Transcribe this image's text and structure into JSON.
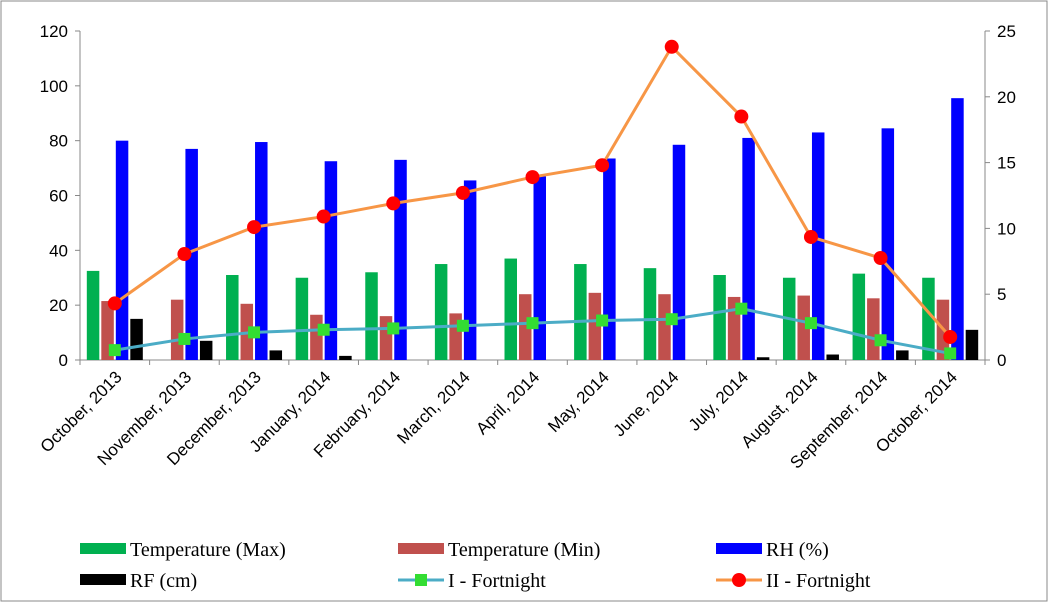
{
  "chart_data": {
    "type": "bar-line",
    "categories": [
      "October, 2013",
      "November, 2013",
      "December, 2013",
      "January, 2014",
      "February, 2014",
      "March, 2014",
      "April, 2014",
      "May, 2014",
      "June, 2014",
      "July, 2014",
      "August, 2014",
      "September, 2014",
      "October, 2014"
    ],
    "series": [
      {
        "name": "Temperature (Max)",
        "kind": "bar",
        "color": "#00b050",
        "values": [
          32.5,
          null,
          31,
          30,
          32,
          35,
          37,
          35,
          33.5,
          31,
          30,
          31.5,
          30
        ]
      },
      {
        "name": "Temperature (Min)",
        "kind": "bar",
        "color": "#c0504d",
        "values": [
          21.5,
          22,
          20.5,
          16.5,
          16,
          17,
          24,
          24.5,
          24,
          23,
          23.5,
          22.5,
          22
        ]
      },
      {
        "name": "RH (%)",
        "kind": "bar",
        "color": "#0000ff",
        "values": [
          80,
          77,
          79.5,
          72.5,
          73,
          65.5,
          67,
          73.5,
          78.5,
          81,
          83,
          84.5,
          95.5
        ]
      },
      {
        "name": "RF (cm)",
        "kind": "bar",
        "color": "#000000",
        "values": [
          15,
          7,
          3.5,
          1.5,
          0,
          0,
          0,
          0,
          0,
          1,
          2,
          3.5,
          11
        ]
      },
      {
        "name": "I - Fortnight",
        "kind": "line",
        "axis": "y2",
        "color": "#4bacc6",
        "marker": "square",
        "marker_color": "#33dd33",
        "values": [
          0.75,
          1.6,
          2.1,
          2.3,
          2.4,
          2.6,
          2.8,
          3.0,
          3.1,
          3.9,
          2.8,
          1.5,
          0.5
        ]
      },
      {
        "name": "II - Fortnight",
        "kind": "line",
        "axis": "y2",
        "color": "#f79646",
        "marker": "circle",
        "marker_color": "#ff0000",
        "values": [
          4.3,
          8.05,
          10.1,
          10.9,
          11.9,
          12.7,
          13.9,
          14.8,
          23.8,
          18.5,
          9.35,
          7.75,
          1.75
        ]
      }
    ],
    "ylim": [
      0,
      120
    ],
    "yticks": [
      0,
      20,
      40,
      60,
      80,
      100,
      120
    ],
    "y2lim": [
      0,
      25
    ],
    "y2ticks": [
      0,
      5,
      10,
      15,
      20,
      25
    ],
    "grid": false
  }
}
